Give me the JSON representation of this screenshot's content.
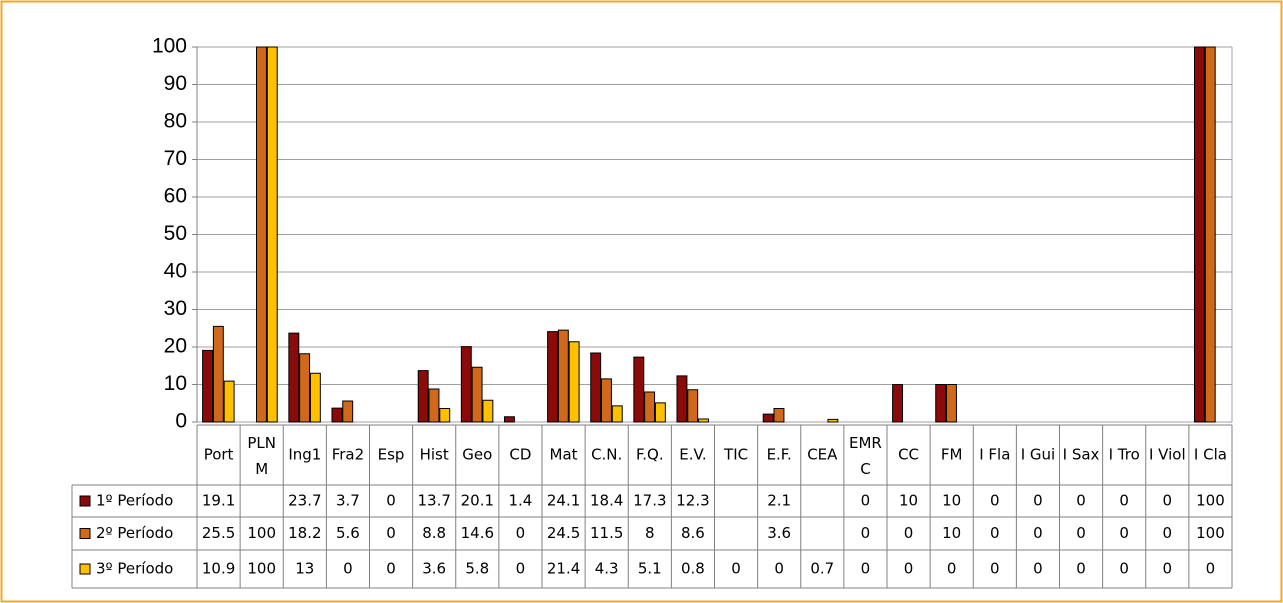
{
  "chart_data": {
    "type": "bar",
    "categories": [
      "Port",
      "PLNM",
      "Ing1",
      "Fra2",
      "Esp",
      "Hist",
      "Geo",
      "CD",
      "Mat",
      "C.N.",
      "F.Q.",
      "E.V.",
      "TIC",
      "E.F.",
      "CEA",
      "EMRC",
      "CC",
      "FM",
      "I Fla",
      "I Gui",
      "I Sax",
      "I Tro",
      "I Viol",
      "I Cla"
    ],
    "series": [
      {
        "name": "1º Período",
        "color": "#8b0a0a",
        "values": [
          19.1,
          null,
          23.7,
          3.7,
          0,
          13.7,
          20.1,
          1.4,
          24.1,
          18.4,
          17.3,
          12.3,
          null,
          2.1,
          null,
          0,
          10,
          10,
          0,
          0,
          0,
          0,
          0,
          100
        ]
      },
      {
        "name": "2º Período",
        "color": "#d0691c",
        "values": [
          25.5,
          100,
          18.2,
          5.6,
          0,
          8.8,
          14.6,
          0,
          24.5,
          11.5,
          8,
          8.6,
          null,
          3.6,
          null,
          0,
          0,
          10,
          0,
          0,
          0,
          0,
          0,
          100
        ]
      },
      {
        "name": "3º Período",
        "color": "#ffc000",
        "values": [
          10.9,
          100,
          13,
          0,
          0,
          3.6,
          5.8,
          0,
          21.4,
          4.3,
          5.1,
          0.8,
          0,
          0,
          0.7,
          0,
          0,
          0,
          0,
          0,
          0,
          0,
          0,
          0
        ]
      }
    ],
    "ylim": [
      0,
      100
    ],
    "yticks": [
      0,
      10,
      20,
      30,
      40,
      50,
      60,
      70,
      80,
      90,
      100
    ],
    "grid": true
  }
}
